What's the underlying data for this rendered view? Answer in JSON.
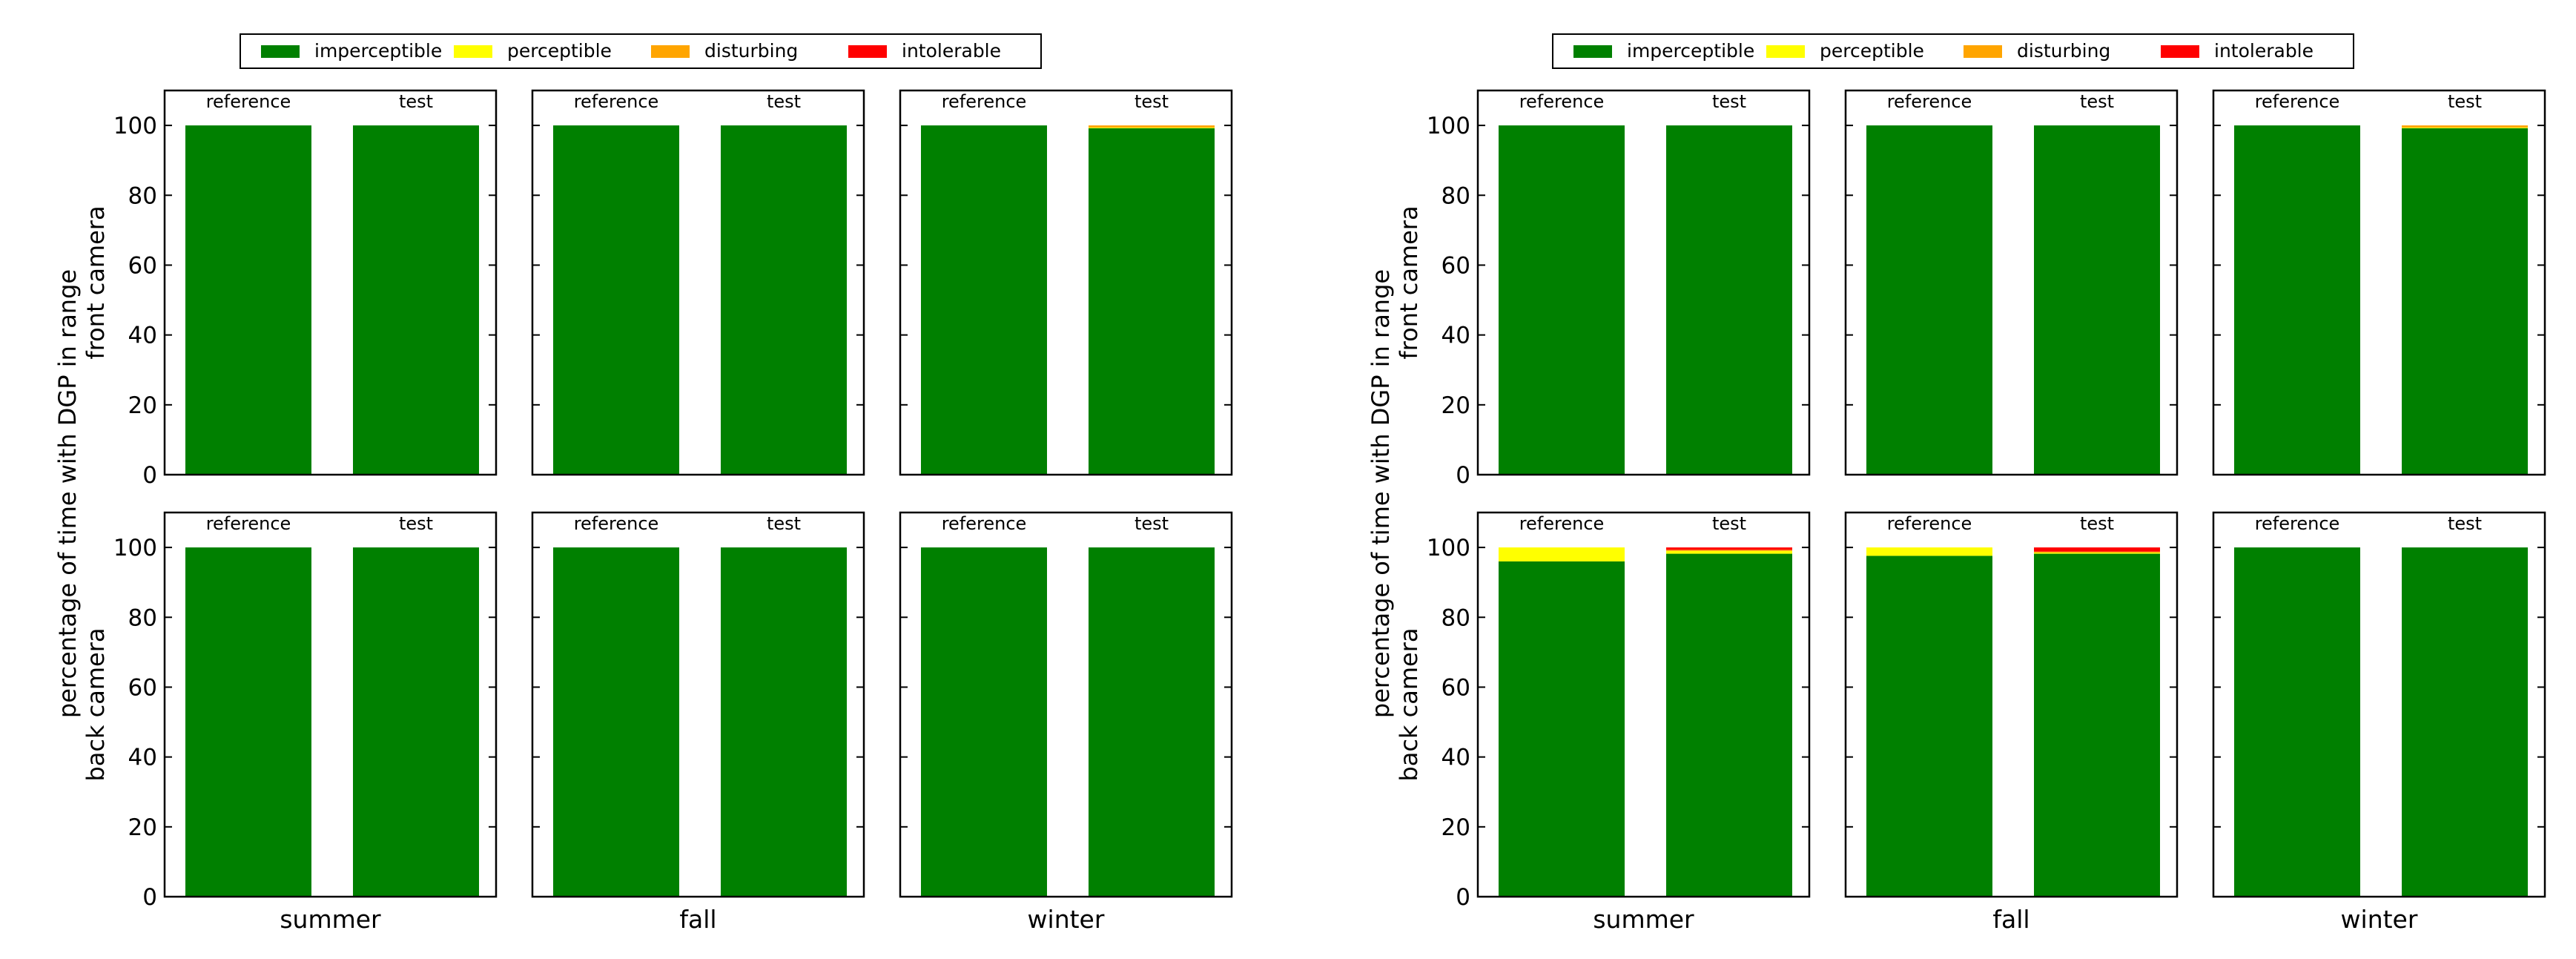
{
  "chart_data": {
    "type": "bar",
    "stacked": true,
    "ylabel": "percentage of time with DGP in range",
    "row_labels": [
      "front camera",
      "back camera"
    ],
    "seasons": [
      "summer",
      "fall",
      "winter"
    ],
    "bar_labels": [
      "reference",
      "test"
    ],
    "yticks": [
      "0",
      "20",
      "40",
      "60",
      "80",
      "100"
    ],
    "ylim": [
      0,
      110
    ],
    "legend": [
      {
        "name": "imperceptible",
        "color": "#008000"
      },
      {
        "name": "perceptible",
        "color": "#ffff00"
      },
      {
        "name": "disturbing",
        "color": "#ffa500"
      },
      {
        "name": "intolerable",
        "color": "#ff0000"
      }
    ],
    "figures": [
      {
        "rows": [
          {
            "camera": "front camera",
            "panels": [
              {
                "season": "summer",
                "bars": [
                  {
                    "label": "reference",
                    "values": [
                      100,
                      0,
                      0,
                      0
                    ]
                  },
                  {
                    "label": "test",
                    "values": [
                      100,
                      0,
                      0,
                      0
                    ]
                  }
                ]
              },
              {
                "season": "fall",
                "bars": [
                  {
                    "label": "reference",
                    "values": [
                      100,
                      0,
                      0,
                      0
                    ]
                  },
                  {
                    "label": "test",
                    "values": [
                      100,
                      0,
                      0,
                      0
                    ]
                  }
                ]
              },
              {
                "season": "winter",
                "bars": [
                  {
                    "label": "reference",
                    "values": [
                      100,
                      0,
                      0,
                      0
                    ]
                  },
                  {
                    "label": "test",
                    "values": [
                      99.2,
                      0.2,
                      0.6,
                      0
                    ]
                  }
                ]
              }
            ]
          },
          {
            "camera": "back camera",
            "panels": [
              {
                "season": "summer",
                "bars": [
                  {
                    "label": "reference",
                    "values": [
                      100,
                      0,
                      0,
                      0
                    ]
                  },
                  {
                    "label": "test",
                    "values": [
                      100,
                      0,
                      0,
                      0
                    ]
                  }
                ]
              },
              {
                "season": "fall",
                "bars": [
                  {
                    "label": "reference",
                    "values": [
                      100,
                      0,
                      0,
                      0
                    ]
                  },
                  {
                    "label": "test",
                    "values": [
                      100,
                      0,
                      0,
                      0
                    ]
                  }
                ]
              },
              {
                "season": "winter",
                "bars": [
                  {
                    "label": "reference",
                    "values": [
                      100,
                      0,
                      0,
                      0
                    ]
                  },
                  {
                    "label": "test",
                    "values": [
                      100,
                      0,
                      0,
                      0
                    ]
                  }
                ]
              }
            ]
          }
        ]
      },
      {
        "rows": [
          {
            "camera": "front camera",
            "panels": [
              {
                "season": "summer",
                "bars": [
                  {
                    "label": "reference",
                    "values": [
                      100,
                      0,
                      0,
                      0
                    ]
                  },
                  {
                    "label": "test",
                    "values": [
                      100,
                      0,
                      0,
                      0
                    ]
                  }
                ]
              },
              {
                "season": "fall",
                "bars": [
                  {
                    "label": "reference",
                    "values": [
                      100,
                      0,
                      0,
                      0
                    ]
                  },
                  {
                    "label": "test",
                    "values": [
                      100,
                      0,
                      0,
                      0
                    ]
                  }
                ]
              },
              {
                "season": "winter",
                "bars": [
                  {
                    "label": "reference",
                    "values": [
                      100,
                      0,
                      0,
                      0
                    ]
                  },
                  {
                    "label": "test",
                    "values": [
                      99.2,
                      0.2,
                      0.6,
                      0
                    ]
                  }
                ]
              }
            ]
          },
          {
            "camera": "back camera",
            "panels": [
              {
                "season": "summer",
                "bars": [
                  {
                    "label": "reference",
                    "values": [
                      96,
                      4,
                      0,
                      0
                    ]
                  },
                  {
                    "label": "test",
                    "values": [
                      98.2,
                      0.8,
                      0.3,
                      0.7
                    ]
                  }
                ]
              },
              {
                "season": "fall",
                "bars": [
                  {
                    "label": "reference",
                    "values": [
                      97.6,
                      2.4,
                      0,
                      0
                    ]
                  },
                  {
                    "label": "test",
                    "values": [
                      98.2,
                      0.3,
                      0.3,
                      1.2
                    ]
                  }
                ]
              },
              {
                "season": "winter",
                "bars": [
                  {
                    "label": "reference",
                    "values": [
                      100,
                      0,
                      0,
                      0
                    ]
                  },
                  {
                    "label": "test",
                    "values": [
                      100,
                      0,
                      0,
                      0
                    ]
                  }
                ]
              }
            ]
          }
        ]
      }
    ]
  }
}
